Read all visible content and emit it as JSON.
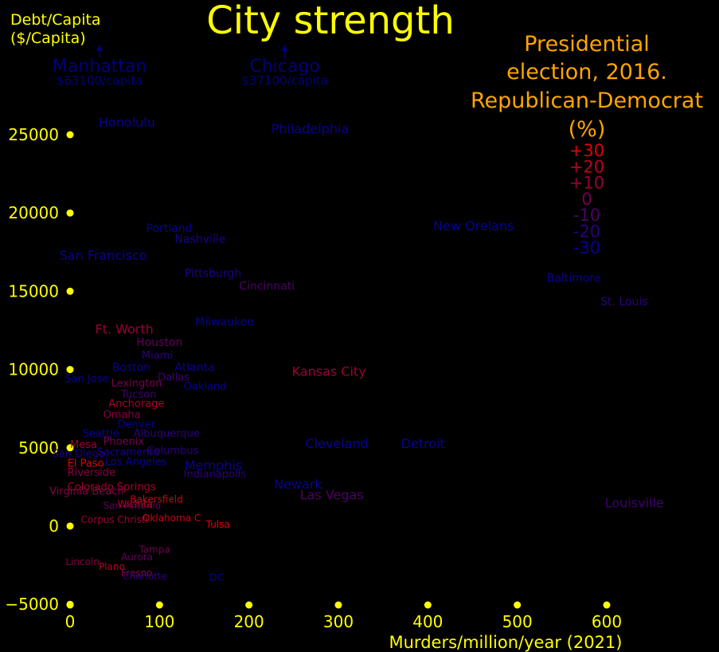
{
  "chart_data": {
    "type": "scatter",
    "title": "City strength",
    "xlabel": "Murders/million/year (2021)",
    "ylabel": "Debt/Capita ($/Capita)",
    "ylabel_lines": [
      "Debt/Capita",
      "($/Capita)"
    ],
    "xlim": [
      0,
      600
    ],
    "ylim": [
      -5000,
      25000
    ],
    "xticks": [
      0,
      100,
      200,
      300,
      400,
      500,
      600
    ],
    "yticks": [
      -5000,
      0,
      5000,
      10000,
      15000,
      20000,
      25000
    ],
    "grid": false,
    "axis_color": "#ffff00",
    "title_color": "#ffff00",
    "legend": {
      "title_lines": [
        "Presidential",
        "election, 2016.",
        "Republican-Democrat",
        "(%)"
      ],
      "title_color": "#ffa500",
      "placement": "top-right",
      "entries": [
        {
          "label": "+30",
          "margin": 30
        },
        {
          "label": "+20",
          "margin": 20
        },
        {
          "label": "+10",
          "margin": 10
        },
        {
          "label": "0",
          "margin": 0
        },
        {
          "label": "-10",
          "margin": -10
        },
        {
          "label": "-20",
          "margin": -20
        },
        {
          "label": "-30",
          "margin": -30
        }
      ]
    },
    "offscale": [
      {
        "name": "Manhattan",
        "x": 33,
        "note": "$63100/capita"
      },
      {
        "name": "Chicago",
        "x": 240,
        "note": "$37100/capita"
      }
    ],
    "cities": [
      {
        "name": "Honolulu",
        "x": 32,
        "y": 25500,
        "margin": -30,
        "size": 16
      },
      {
        "name": "Philadelphia",
        "x": 225,
        "y": 25100,
        "margin": -30,
        "size": 16
      },
      {
        "name": "Portland",
        "x": 85,
        "y": 18800,
        "margin": -30,
        "size": 14
      },
      {
        "name": "Nashville",
        "x": 117,
        "y": 18100,
        "margin": -25,
        "size": 14
      },
      {
        "name": "New Orelans",
        "x": 406,
        "y": 18900,
        "margin": -30,
        "size": 16
      },
      {
        "name": "San Francisco",
        "x": -12,
        "y": 17000,
        "margin": -30,
        "size": 16
      },
      {
        "name": "Pittsburgh",
        "x": 128,
        "y": 15900,
        "margin": -25,
        "size": 14
      },
      {
        "name": "Cincinnati",
        "x": 189,
        "y": 15100,
        "margin": -10,
        "size": 14
      },
      {
        "name": "Baltimore",
        "x": 533,
        "y": 15600,
        "margin": -30,
        "size": 14
      },
      {
        "name": "St. Louis",
        "x": 593,
        "y": 14100,
        "margin": -20,
        "size": 14
      },
      {
        "name": "Milwaukee",
        "x": 140,
        "y": 12800,
        "margin": -30,
        "size": 14
      },
      {
        "name": "Ft. Worth",
        "x": 28,
        "y": 12300,
        "margin": 10,
        "size": 16
      },
      {
        "name": "Houston",
        "x": 74,
        "y": 11500,
        "margin": -5,
        "size": 14
      },
      {
        "name": "Miami",
        "x": 80,
        "y": 10700,
        "margin": -20,
        "size": 13
      },
      {
        "name": "Boston",
        "x": 47,
        "y": 9900,
        "margin": -30,
        "size": 14
      },
      {
        "name": "Atlanta",
        "x": 117,
        "y": 9900,
        "margin": -30,
        "size": 14
      },
      {
        "name": "Kansas City",
        "x": 248,
        "y": 9600,
        "margin": 10,
        "size": 16
      },
      {
        "name": "San Jose",
        "x": -6,
        "y": 9200,
        "margin": -30,
        "size": 13
      },
      {
        "name": "Dallas",
        "x": 98,
        "y": 9300,
        "margin": -15,
        "size": 13
      },
      {
        "name": "Lexington",
        "x": 46,
        "y": 8900,
        "margin": 0,
        "size": 13
      },
      {
        "name": "Oakland",
        "x": 127,
        "y": 8700,
        "margin": -30,
        "size": 13
      },
      {
        "name": "Tucson",
        "x": 57,
        "y": 8200,
        "margin": -15,
        "size": 13
      },
      {
        "name": "Anchorage",
        "x": 43,
        "y": 7600,
        "margin": 15,
        "size": 13
      },
      {
        "name": "Omaha",
        "x": 37,
        "y": 6900,
        "margin": 5,
        "size": 13
      },
      {
        "name": "Denver",
        "x": 53,
        "y": 6300,
        "margin": -30,
        "size": 13
      },
      {
        "name": "Seattle",
        "x": 14,
        "y": 5700,
        "margin": -30,
        "size": 13
      },
      {
        "name": "Albuquerque",
        "x": 71,
        "y": 5700,
        "margin": -20,
        "size": 13
      },
      {
        "name": "Mesa",
        "x": 0,
        "y": 5000,
        "margin": 10,
        "size": 13
      },
      {
        "name": "Phoenix",
        "x": 37,
        "y": 5200,
        "margin": 0,
        "size": 13
      },
      {
        "name": "Cleveland",
        "x": 263,
        "y": 5000,
        "margin": -30,
        "size": 16
      },
      {
        "name": "Detroit",
        "x": 370,
        "y": 5000,
        "margin": -30,
        "size": 16
      },
      {
        "name": "San Diego",
        "x": -20,
        "y": 4400,
        "margin": -25,
        "size": 13
      },
      {
        "name": "Sacramento",
        "x": 30,
        "y": 4500,
        "margin": -25,
        "size": 13
      },
      {
        "name": "Columbus",
        "x": 86,
        "y": 4600,
        "margin": -20,
        "size": 13
      },
      {
        "name": "Los Angeles",
        "x": 39,
        "y": 3900,
        "margin": -30,
        "size": 13
      },
      {
        "name": "El Paso",
        "x": -3,
        "y": 3800,
        "margin": 30,
        "size": 13
      },
      {
        "name": "Memphis",
        "x": 128,
        "y": 3600,
        "margin": -30,
        "size": 16
      },
      {
        "name": "Indianapolis",
        "x": 127,
        "y": 3100,
        "margin": -20,
        "size": 13
      },
      {
        "name": "Riverside",
        "x": -3,
        "y": 3200,
        "margin": 5,
        "size": 13
      },
      {
        "name": "Newark",
        "x": 228,
        "y": 2400,
        "margin": -30,
        "size": 16
      },
      {
        "name": "Colorado Springs",
        "x": -3,
        "y": 2300,
        "margin": 15,
        "size": 13
      },
      {
        "name": "Virginia Beach",
        "x": -23,
        "y": 2000,
        "margin": 5,
        "size": 13
      },
      {
        "name": "Las Vegas",
        "x": 257,
        "y": 1700,
        "margin": -10,
        "size": 16
      },
      {
        "name": "Bakersfield",
        "x": 67,
        "y": 1500,
        "margin": 25,
        "size": 12
      },
      {
        "name": "Louisville",
        "x": 598,
        "y": 1200,
        "margin": -15,
        "size": 16
      },
      {
        "name": "San Antonio",
        "x": 37,
        "y": 1100,
        "margin": -5,
        "size": 12
      },
      {
        "name": "Wichita",
        "x": 53,
        "y": 1200,
        "margin": 20,
        "size": 12
      },
      {
        "name": "Corpus Christi",
        "x": 12,
        "y": 200,
        "margin": 10,
        "size": 12
      },
      {
        "name": "Oklahoma C",
        "x": 81,
        "y": 300,
        "margin": 25,
        "size": 12
      },
      {
        "name": "Tulsa",
        "x": 152,
        "y": -100,
        "margin": 30,
        "size": 12
      },
      {
        "name": "Tampa",
        "x": 77,
        "y": -1700,
        "margin": 0,
        "size": 12
      },
      {
        "name": "Aurora",
        "x": 57,
        "y": -2200,
        "margin": -5,
        "size": 12
      },
      {
        "name": "Lincoln",
        "x": -5,
        "y": -2500,
        "margin": 5,
        "size": 12
      },
      {
        "name": "Plano",
        "x": 32,
        "y": -2800,
        "margin": 20,
        "size": 12
      },
      {
        "name": "Fresno",
        "x": 57,
        "y": -3200,
        "margin": 5,
        "size": 12
      },
      {
        "name": "Charlotte",
        "x": 59,
        "y": -3400,
        "margin": -20,
        "size": 12
      },
      {
        "name": "DC",
        "x": 156,
        "y": -3500,
        "margin": -30,
        "size": 12
      }
    ]
  }
}
